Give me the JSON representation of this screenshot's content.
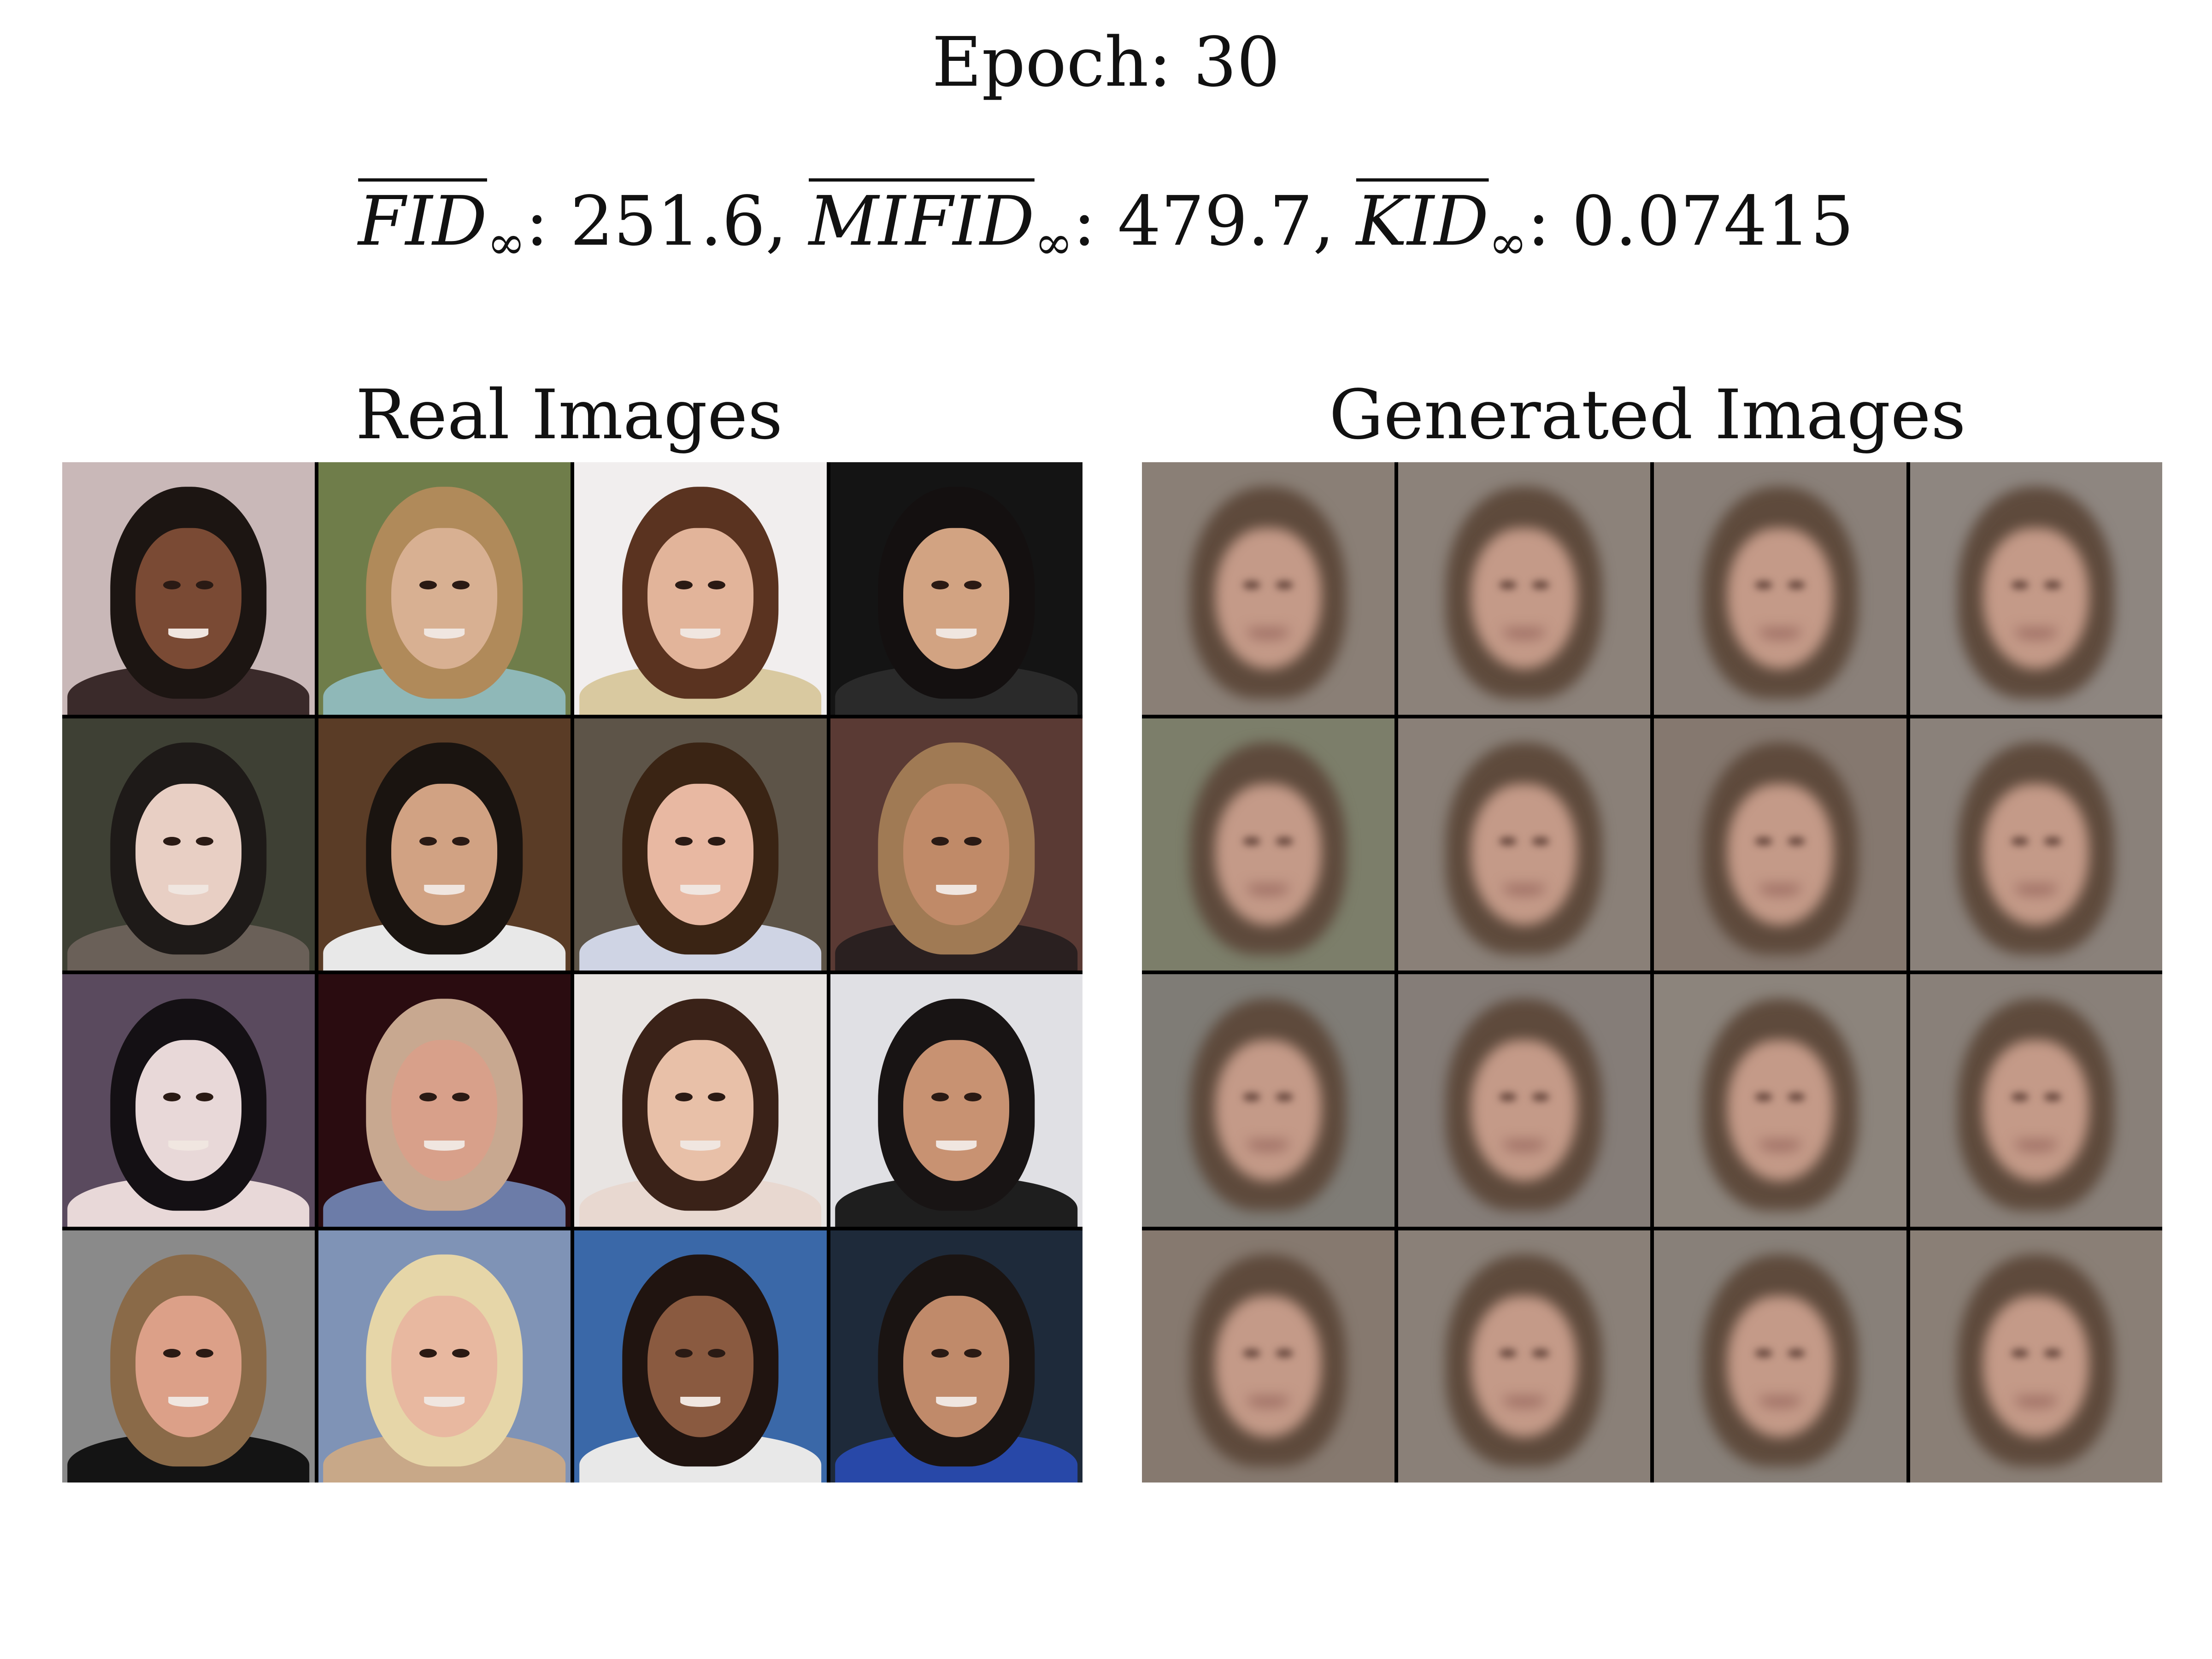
{
  "header": {
    "epoch_label": "Epoch: 30",
    "metrics": [
      {
        "name": "FID",
        "subscript": "∞",
        "value": "251.6",
        "sep": ", "
      },
      {
        "name": "MIFID",
        "subscript": "∞",
        "value": "479.7",
        "sep": ", "
      },
      {
        "name": "KID",
        "subscript": "∞",
        "value": "0.07415",
        "sep": ""
      }
    ]
  },
  "panels": {
    "real": {
      "title": "Real Images",
      "cells": [
        {
          "bg": "#c9b8b8",
          "hair": "#1c1512",
          "skin": "#7a4a34",
          "cloth": "#3a2a2a"
        },
        {
          "bg": "#6f7d4a",
          "hair": "#b08a5a",
          "skin": "#d8b092",
          "cloth": "#8fb8b8"
        },
        {
          "bg": "#f1eeee",
          "hair": "#5a3320",
          "skin": "#e2b49a",
          "cloth": "#d9c9a0"
        },
        {
          "bg": "#141414",
          "hair": "#141010",
          "skin": "#d2a382",
          "cloth": "#2a2a2a"
        },
        {
          "bg": "#3e4034",
          "hair": "#1e1a18",
          "skin": "#e8cfc4",
          "cloth": "#6a6058"
        },
        {
          "bg": "#5a3c26",
          "hair": "#1a1410",
          "skin": "#d1a283",
          "cloth": "#e8e8e8"
        },
        {
          "bg": "#5d5448",
          "hair": "#3a2414",
          "skin": "#e8b8a2",
          "cloth": "#cfd4e4"
        },
        {
          "bg": "#5a3a34",
          "hair": "#a07a54",
          "skin": "#c08a68",
          "cloth": "#2a2020"
        },
        {
          "bg": "#5a4a5e",
          "hair": "#141014",
          "skin": "#e8d8d8",
          "cloth": "#e8d8d8"
        },
        {
          "bg": "#2a0c10",
          "hair": "#c8a890",
          "skin": "#d8a08a",
          "cloth": "#6c7ca8"
        },
        {
          "bg": "#e8e4e2",
          "hair": "#3a2218",
          "skin": "#e8c0a8",
          "cloth": "#e8d8d0"
        },
        {
          "bg": "#e0e0e4",
          "hair": "#181414",
          "skin": "#c89272",
          "cloth": "#1e1e1e"
        },
        {
          "bg": "#8a8a8a",
          "hair": "#8a6a48",
          "skin": "#dca088",
          "cloth": "#141414"
        },
        {
          "bg": "#7f93b6",
          "hair": "#e6d6a8",
          "skin": "#e8b8a0",
          "cloth": "#c8a888"
        },
        {
          "bg": "#3a68a8",
          "hair": "#201410",
          "skin": "#8a5a40",
          "cloth": "#e8e8e8"
        },
        {
          "bg": "#1e2a3a",
          "hair": "#1a1412",
          "skin": "#c08a6a",
          "cloth": "#2848a8"
        }
      ]
    },
    "generated": {
      "title": "Generated Images",
      "cells": [
        {
          "bg": "#8a7f76"
        },
        {
          "bg": "#8c827a"
        },
        {
          "bg": "#8a8079"
        },
        {
          "bg": "#8e8680"
        },
        {
          "bg": "#7c7e6a"
        },
        {
          "bg": "#8a8078"
        },
        {
          "bg": "#85786f"
        },
        {
          "bg": "#8a817a"
        },
        {
          "bg": "#7f7c76"
        },
        {
          "bg": "#857d78"
        },
        {
          "bg": "#8c847c"
        },
        {
          "bg": "#898079"
        },
        {
          "bg": "#86796f"
        },
        {
          "bg": "#8a8078"
        },
        {
          "bg": "#888079"
        },
        {
          "bg": "#8a7f76"
        }
      ],
      "colors": {
        "hair": "#5e4a3c",
        "skin": "#c49a88",
        "feature": "#6a4a40",
        "mouth": "#9a6a60"
      }
    }
  }
}
